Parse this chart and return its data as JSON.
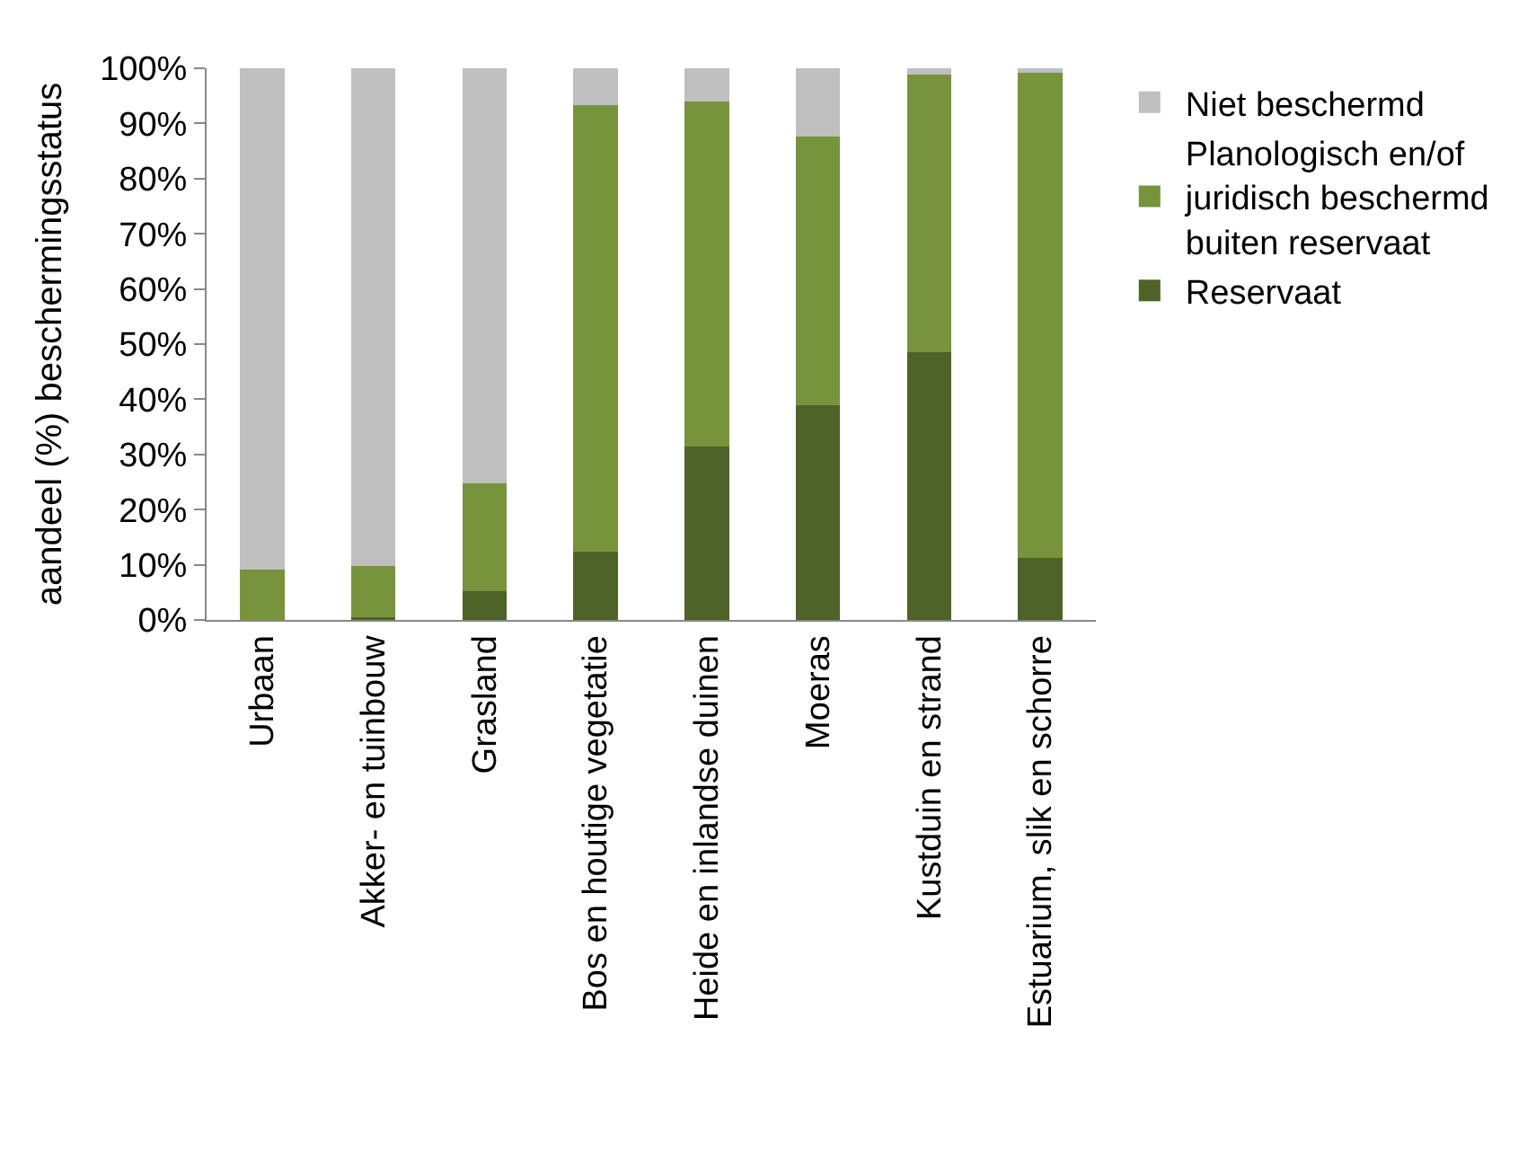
{
  "chart_data": {
    "type": "bar",
    "stacked": true,
    "ylabel": "aandeel (%) beschermingsstatus",
    "categories": [
      "Urbaan",
      "Akker- en tuinbouw",
      "Grasland",
      "Bos en houtige vegetatie",
      "Heide en inlandse duinen",
      "Moeras",
      "Kustduin en strand",
      "Estuarium, slik en schorre"
    ],
    "series": [
      {
        "name": "Reservaat",
        "color": "#4f6228",
        "values": [
          0,
          0.5,
          5.2,
          12.3,
          31.4,
          38.9,
          48.6,
          11.2
        ]
      },
      {
        "name": "Planologisch en/of juridisch beschermd buiten reservaat",
        "color": "#77933c",
        "values": [
          9.2,
          9.3,
          19.5,
          81.0,
          62.6,
          48.7,
          50.2,
          88.0
        ]
      },
      {
        "name": "Niet beschermd",
        "color": "#bfbfbf",
        "values": [
          90.8,
          90.2,
          75.3,
          6.7,
          6.0,
          12.4,
          1.2,
          0.8
        ]
      }
    ],
    "ylim": [
      0,
      100
    ],
    "yticks": [
      {
        "value": 0,
        "label": "0%"
      },
      {
        "value": 10,
        "label": "10%"
      },
      {
        "value": 20,
        "label": "20%"
      },
      {
        "value": 30,
        "label": "30%"
      },
      {
        "value": 40,
        "label": "40%"
      },
      {
        "value": 50,
        "label": "50%"
      },
      {
        "value": 60,
        "label": "60%"
      },
      {
        "value": 70,
        "label": "70%"
      },
      {
        "value": 80,
        "label": "80%"
      },
      {
        "value": 90,
        "label": "90%"
      },
      {
        "value": 100,
        "label": "100%"
      }
    ],
    "grid": false,
    "legend": "right"
  }
}
